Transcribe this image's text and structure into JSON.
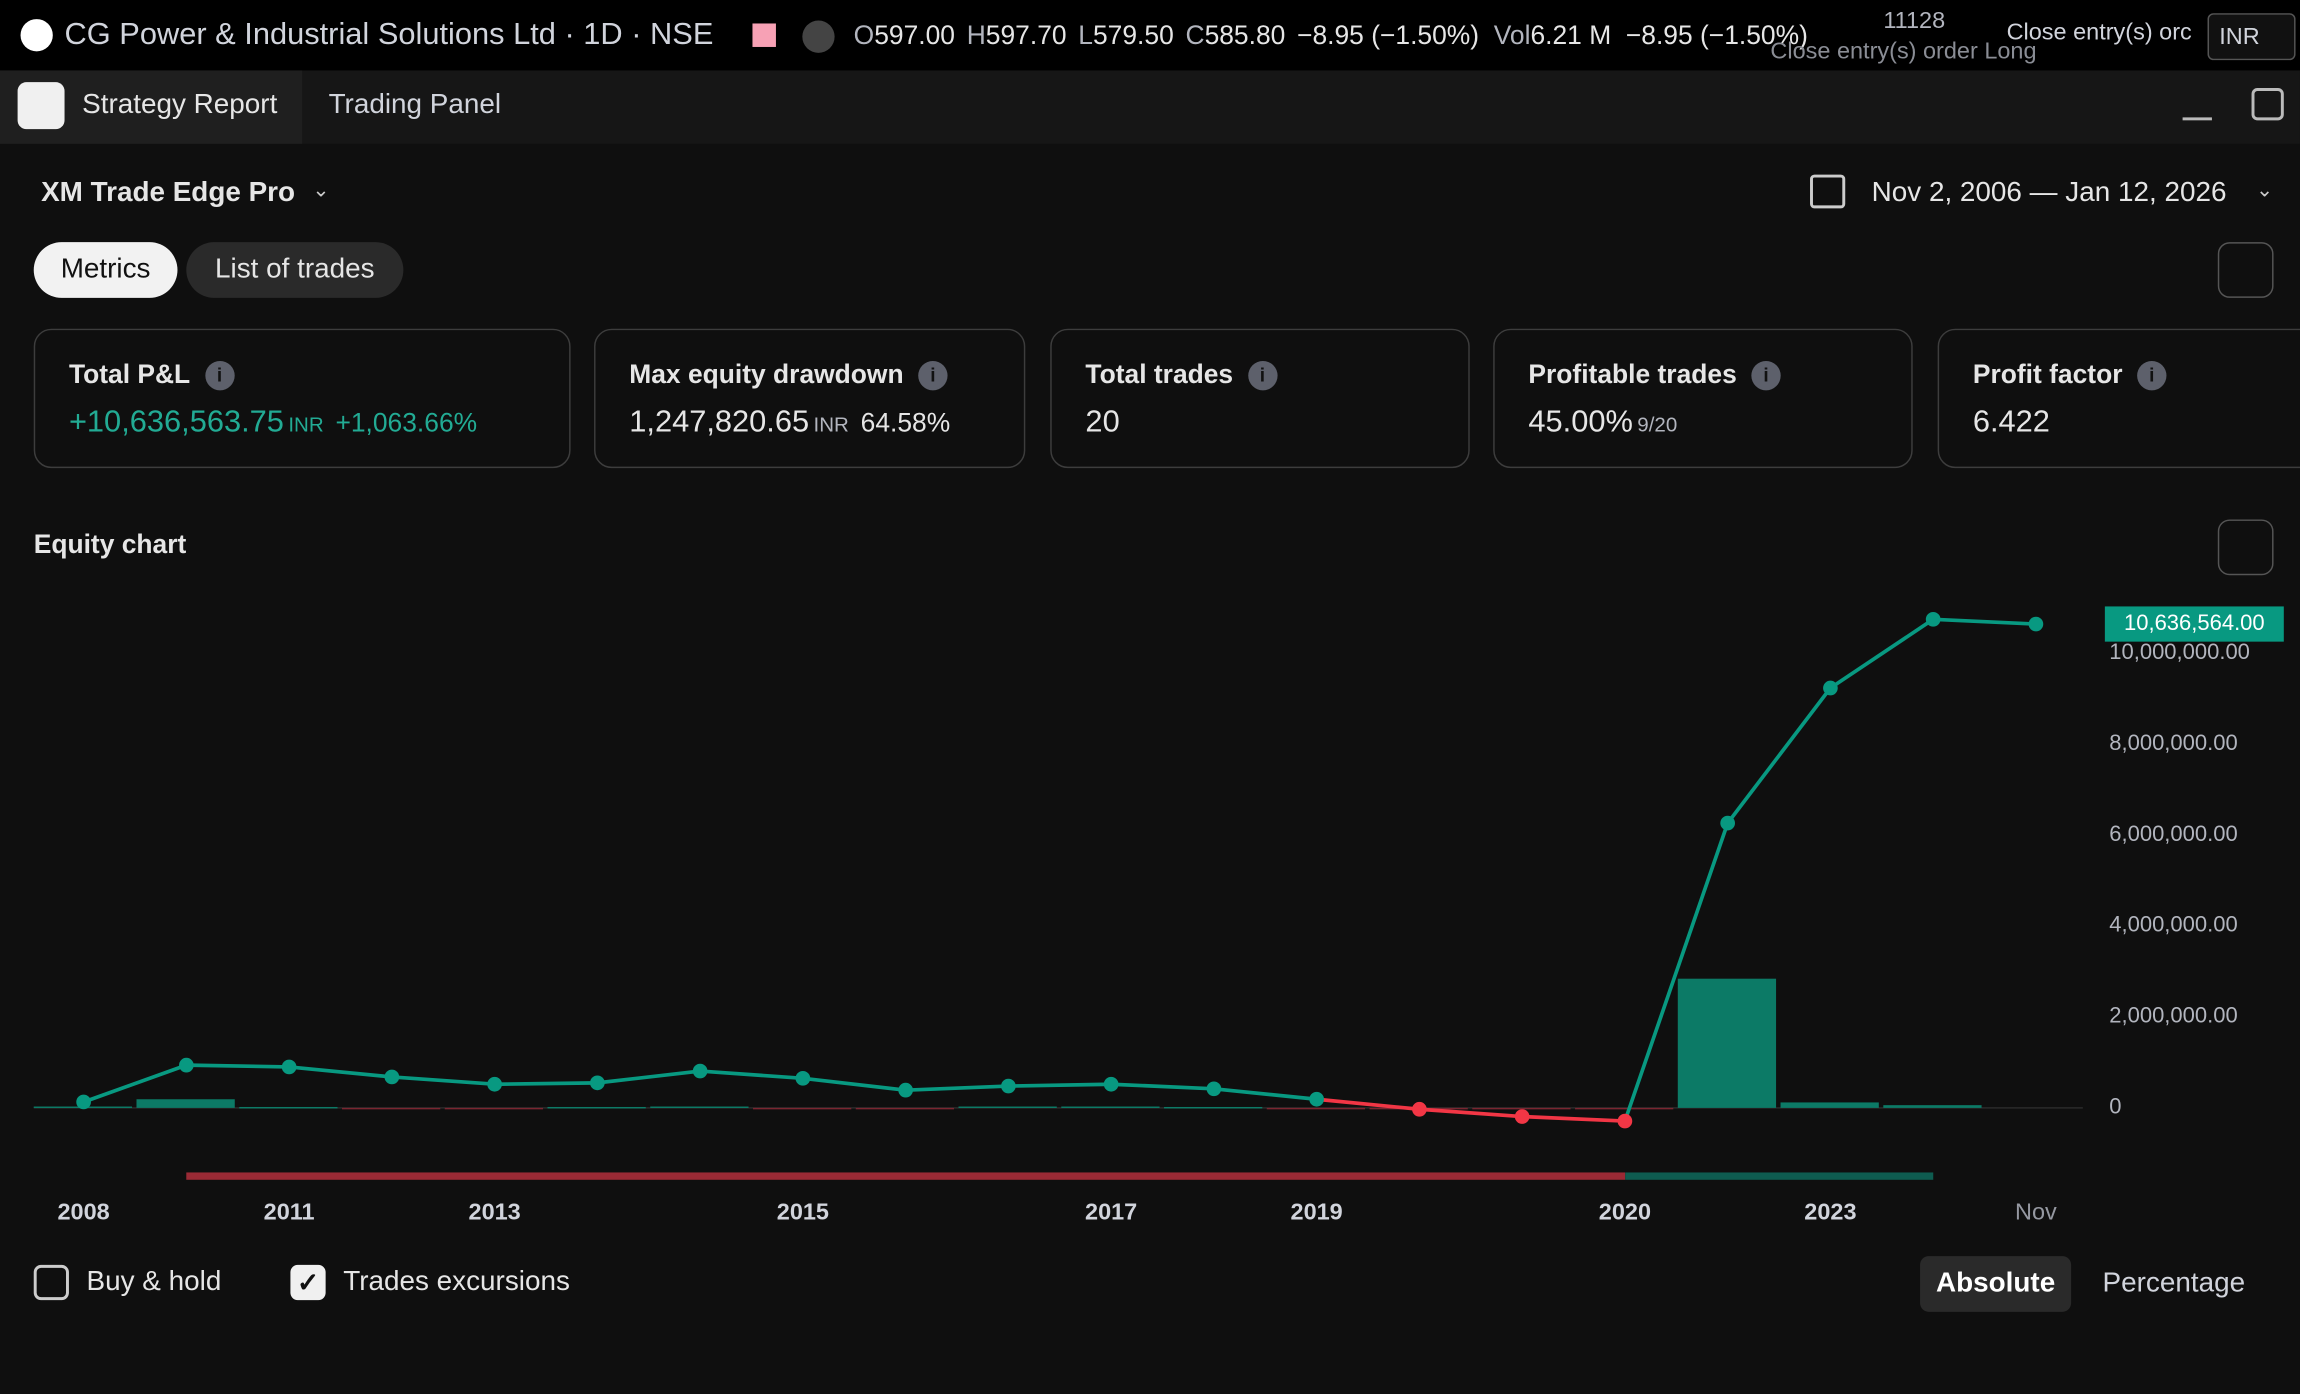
{
  "header": {
    "symbol": "CG Power & Industrial Solutions Ltd · 1D · NSE",
    "ohlc": [
      {
        "label": "O",
        "value": "597.00"
      },
      {
        "label": "H",
        "value": "597.70"
      },
      {
        "label": "L",
        "value": "579.50"
      },
      {
        "label": "C",
        "value": "585.80"
      }
    ],
    "change": "−8.95 (−1.50%)",
    "vol_label": "Vol",
    "volume": "6.21 M",
    "change_2": "−8.95 (−1.50%)",
    "overlay_number": "11128",
    "overlay_order": "Close entry(s) order Long",
    "overlay_order_2": "Close entry(s) orc",
    "currency": "INR"
  },
  "tabs": [
    "Strategy Report",
    "Trading Panel"
  ],
  "strategy_name": "XM Trade Edge Pro",
  "date_range": "Nov 2, 2006 — Jan 12, 2026",
  "view_tabs": [
    "Metrics",
    "List of trades"
  ],
  "metrics": [
    {
      "title": "Total P&L",
      "value": "+10,636,563.75",
      "unit": "INR",
      "extra": "+1,063.66%"
    },
    {
      "title": "Max equity drawdown",
      "value": "1,247,820.65",
      "unit": "INR",
      "extra": "64.58%"
    },
    {
      "title": "Total trades",
      "value": "20"
    },
    {
      "title": "Profitable trades",
      "value": "45.00%",
      "unit": "9/20"
    },
    {
      "title": "Profit factor",
      "value": "6.422"
    }
  ],
  "chart_data": {
    "type": "line",
    "title": "Equity chart",
    "categories": [
      "2008",
      null,
      "2011",
      null,
      "2013",
      null,
      null,
      "2015",
      null,
      null,
      "2017",
      null,
      "2019",
      null,
      null,
      "2020",
      null,
      "2023",
      null,
      "Nov"
    ],
    "series": [
      {
        "name": "Equity",
        "color": "#089981",
        "negative_color": "#f23645",
        "values": [
          130000,
          940000,
          900000,
          680000,
          520000,
          550000,
          810000,
          650000,
          390000,
          480000,
          520000,
          420000,
          190000,
          -30000,
          -190000,
          -290000,
          6260000,
          9230000,
          10740000,
          10636564
        ],
        "value_labels": [
          null,
          null,
          null,
          null,
          null,
          null,
          null,
          null,
          null,
          null,
          null,
          null,
          null,
          null,
          null,
          null,
          null,
          null,
          null,
          "10,636,564.00"
        ]
      },
      {
        "name": "Trades excursions",
        "type": "bar",
        "color": "#0c7a66",
        "negative_color": "#7a2530",
        "values": [
          30000,
          190000,
          20000,
          -20000,
          -30000,
          20000,
          30000,
          -30000,
          -30000,
          30000,
          30000,
          20000,
          -20000,
          -20000,
          -30000,
          -30000,
          2840000,
          120000,
          60000,
          null
        ]
      }
    ],
    "ylim": [
      -1000000,
      11000000
    ],
    "yticks": [
      0,
      {
        "value": 2000000,
        "label": "2,000,000.00"
      },
      {
        "value": 4000000,
        "label": "4,000,000.00"
      },
      {
        "value": 6000000,
        "label": "6,000,000.00"
      },
      {
        "value": 8000000,
        "label": "8,000,000.00"
      },
      {
        "value": 10000000,
        "label": "10,000,000.00"
      }
    ],
    "grid": false
  },
  "footer": {
    "checkboxes": [
      {
        "label": "Buy & hold",
        "checked": false
      },
      {
        "label": "Trades excursions",
        "checked": true
      }
    ],
    "modes": [
      "Absolute",
      "Percentage"
    ]
  }
}
